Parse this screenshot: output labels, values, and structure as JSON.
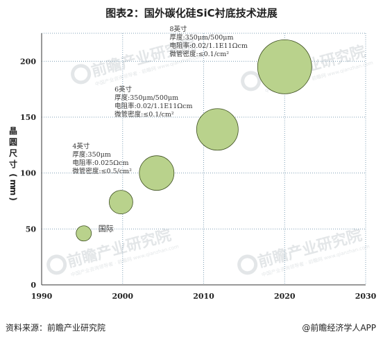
{
  "title": "图表2：国外碳化硅SiC衬底技术进展",
  "footer": {
    "source": "资料来源：前瞻产业研究院",
    "brand": "@前瞻经济学人APP"
  },
  "watermark": {
    "name": "前瞻产业研究院",
    "sub": "中国产业咨询领导者 · 前瞻网 www.qianzhan.com"
  },
  "chart_data": {
    "type": "scatter",
    "title": "图表2：国外碳化硅SiC衬底技术进展",
    "xlabel": "",
    "ylabel": "晶圆尺寸（mm）",
    "xlim": [
      1990,
      2030
    ],
    "ylim": [
      0,
      225
    ],
    "xticks": [
      "1990",
      "2000",
      "2010",
      "2020",
      "2030"
    ],
    "yticks": [
      "0",
      "50",
      "100",
      "150",
      "200"
    ],
    "grid": true,
    "colors": {
      "bubble_fill": "#b9d28c",
      "bubble_stroke": "#3b4d1e",
      "grid": "#7f9fb5"
    },
    "points": [
      {
        "x": 1995.2,
        "y": 46,
        "size": 11
      },
      {
        "x": 1999.8,
        "y": 74,
        "size": 17
      },
      {
        "x": 2004.2,
        "y": 100,
        "size": 25
      },
      {
        "x": 2011.7,
        "y": 139,
        "size": 30
      },
      {
        "x": 2020.0,
        "y": 195,
        "size": 39
      }
    ],
    "annotations": [
      {
        "label_x": 1997.0,
        "label_y": 48,
        "lines": [
          "国际"
        ],
        "first_large": true
      },
      {
        "label_x": 1993.8,
        "label_y": 122,
        "lines": [
          "4英寸",
          "厚度:350μm",
          "电阻率:0.025Ωcm",
          "微管密度:≤0.5/cm²"
        ]
      },
      {
        "label_x": 1999.0,
        "label_y": 173,
        "lines": [
          "6英寸",
          "厚度:350μm/500μm",
          "电阻率:0.02/1.1E11Ωcm",
          "微管密度:≤0.1/cm²"
        ]
      },
      {
        "label_x": 2005.8,
        "label_y": 227,
        "lines": [
          "8英寸",
          "厚度:350μm/500μm",
          "电阻率:0.02/1.1E11Ωcm",
          "微管密度:≤0.1/cm²"
        ]
      }
    ]
  }
}
